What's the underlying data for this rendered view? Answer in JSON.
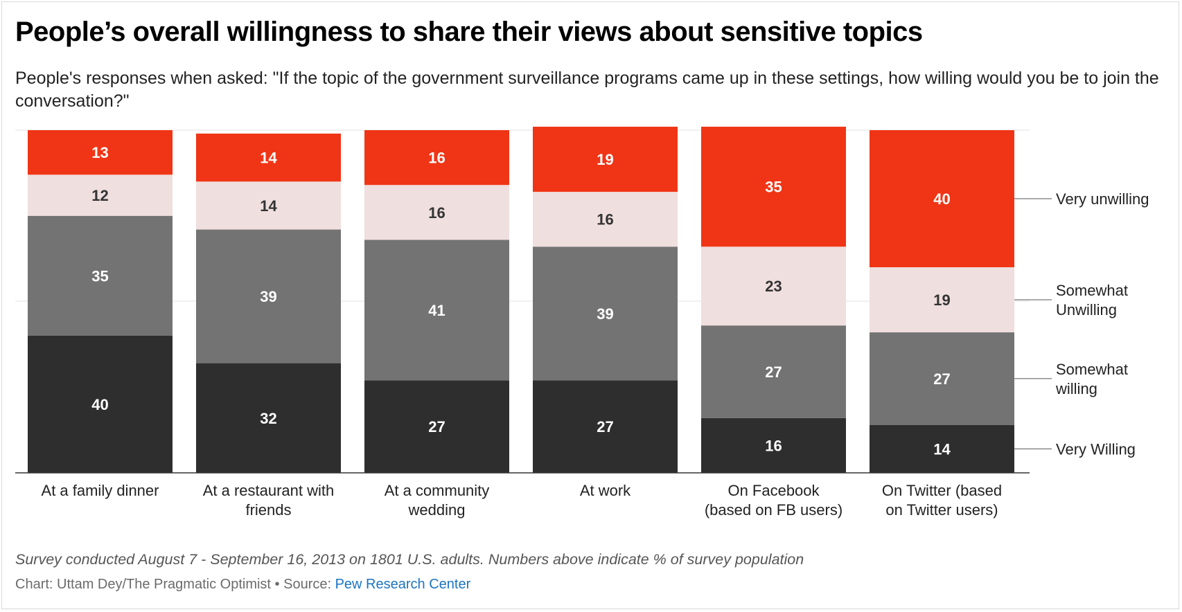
{
  "title": "People’s overall willingness to share their views about sensitive topics",
  "subtitle": "People's responses when asked: \"If the topic of the government surveillance programs came up in these settings, how willing would you be to join the conversation?\"",
  "note": "Survey conducted August 7 - September 16, 2013 on 1801 U.S. adults. Numbers above indicate % of survey population",
  "credit": {
    "prefix": "Chart: Uttam Dey/The Pragmatic Optimist • Source: ",
    "source": "Pew Research Center"
  },
  "chart_data": {
    "type": "bar",
    "stacked": true,
    "categories": [
      [
        "At a family dinner"
      ],
      [
        "At a restaurant with",
        "friends"
      ],
      [
        "At a community",
        "wedding"
      ],
      [
        "At work"
      ],
      [
        "On Facebook",
        "(based on FB users)"
      ],
      [
        "On Twitter (based",
        "on Twitter users)"
      ]
    ],
    "series": [
      {
        "name": "Very Willing",
        "label_lines": [
          "Very Willing"
        ],
        "color": "#2e2e2e",
        "values": [
          40,
          32,
          27,
          27,
          16,
          14
        ]
      },
      {
        "name": "Somewhat willing",
        "label_lines": [
          "Somewhat",
          "willing"
        ],
        "color": "#737373",
        "values": [
          35,
          39,
          41,
          39,
          27,
          27
        ]
      },
      {
        "name": "Somewhat Unwilling",
        "label_lines": [
          "Somewhat",
          "Unwilling"
        ],
        "color": "#efdfde",
        "values": [
          12,
          14,
          16,
          16,
          23,
          19
        ]
      },
      {
        "name": "Very unwilling",
        "label_lines": [
          "Very unwilling"
        ],
        "color": "#f03516",
        "values": [
          13,
          14,
          16,
          19,
          35,
          40
        ]
      }
    ],
    "unit": "% of survey population",
    "legend_position": "right",
    "grid": true,
    "xlabel": "",
    "ylabel": ""
  }
}
